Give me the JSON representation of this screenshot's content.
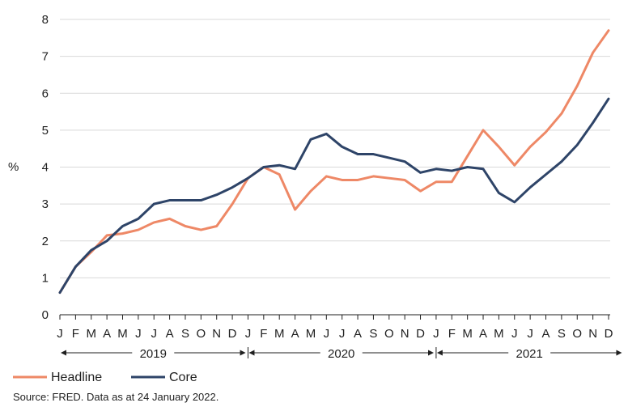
{
  "chart_data": {
    "type": "line",
    "title": "",
    "ylabel": "%",
    "xlabel": "",
    "ylim": [
      0,
      8
    ],
    "yticks": [
      0,
      1,
      2,
      3,
      4,
      5,
      6,
      7,
      8
    ],
    "grid": "horizontal",
    "legend_position": "bottom-left",
    "x_month_labels": [
      "J",
      "F",
      "M",
      "A",
      "M",
      "J",
      "J",
      "A",
      "S",
      "O",
      "N",
      "D",
      "J",
      "F",
      "M",
      "A",
      "M",
      "J",
      "J",
      "A",
      "S",
      "O",
      "N",
      "D",
      "J",
      "F",
      "M",
      "A",
      "M",
      "J",
      "J",
      "A",
      "S",
      "O",
      "N",
      "D"
    ],
    "year_labels": [
      "2019",
      "2020",
      "2021"
    ],
    "x": [
      "2019-01",
      "2019-02",
      "2019-03",
      "2019-04",
      "2019-05",
      "2019-06",
      "2019-07",
      "2019-08",
      "2019-09",
      "2019-10",
      "2019-11",
      "2019-12",
      "2020-01",
      "2020-02",
      "2020-03",
      "2020-04",
      "2020-05",
      "2020-06",
      "2020-07",
      "2020-08",
      "2020-09",
      "2020-10",
      "2020-11",
      "2020-12",
      "2021-01",
      "2021-02",
      "2021-03",
      "2021-04",
      "2021-05",
      "2021-06",
      "2021-07",
      "2021-08",
      "2021-09",
      "2021-10",
      "2021-11",
      "2021-12"
    ],
    "series": [
      {
        "name": "Headline",
        "color": "#ee8866",
        "values": [
          0.6,
          1.3,
          1.7,
          2.15,
          2.2,
          2.3,
          2.5,
          2.6,
          2.4,
          2.3,
          2.4,
          3.0,
          3.7,
          4.0,
          3.8,
          2.85,
          3.35,
          3.75,
          3.65,
          3.65,
          3.75,
          3.7,
          3.65,
          3.35,
          3.6,
          3.6,
          4.3,
          5.0,
          4.55,
          4.05,
          4.55,
          4.95,
          5.45,
          6.2,
          7.1,
          7.7
        ]
      },
      {
        "name": "Core",
        "color": "#2e4468",
        "values": [
          0.6,
          1.3,
          1.75,
          2.0,
          2.4,
          2.6,
          3.0,
          3.1,
          3.1,
          3.1,
          3.25,
          3.45,
          3.7,
          4.0,
          4.05,
          3.95,
          4.75,
          4.9,
          4.55,
          4.35,
          4.35,
          4.25,
          4.15,
          3.85,
          3.95,
          3.9,
          4.0,
          3.95,
          3.3,
          3.05,
          3.45,
          3.8,
          4.15,
          4.6,
          5.2,
          5.85
        ]
      }
    ],
    "source_note": "Source: FRED. Data as at 24 January 2022."
  }
}
